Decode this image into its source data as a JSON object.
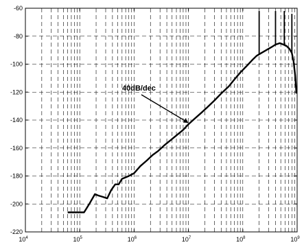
{
  "chart_data": {
    "type": "line",
    "title": "",
    "xlabel": "",
    "ylabel": "",
    "x_scale": "log",
    "xlim": [
      10000,
      1000000000
    ],
    "ylim": [
      -220,
      -60
    ],
    "grid": true,
    "x_tick_labels": [
      {
        "base": "10",
        "exp": "4",
        "value": 10000
      },
      {
        "base": "10",
        "exp": "5",
        "value": 100000
      },
      {
        "base": "10",
        "exp": "6",
        "value": 1000000
      },
      {
        "base": "10",
        "exp": "7",
        "value": 10000000
      },
      {
        "base": "10",
        "exp": "8",
        "value": 100000000
      },
      {
        "base": "10",
        "exp": "9",
        "value": 1000000000
      }
    ],
    "y_ticks": [
      -60,
      -80,
      -100,
      -120,
      -140,
      -160,
      -180,
      -200,
      -220
    ],
    "series": [
      {
        "name": "",
        "color": "#000000",
        "x": [
          60000,
          120000,
          150000,
          190000,
          220000,
          270000,
          320000,
          380000,
          450000,
          520000,
          600000,
          700000,
          800000,
          1000000,
          1300000,
          1700000,
          2200000,
          2800000,
          3600000,
          4500000,
          6000000,
          8000000,
          10000000,
          13000000,
          17000000,
          22000000,
          30000000,
          40000000,
          55000000,
          70000000,
          90000000,
          120000000,
          150000000,
          180000000,
          220000000,
          270000000,
          330000000,
          400000000,
          480000000,
          560000000,
          640000000,
          720000000,
          800000000,
          860000000,
          920000000,
          970000000
        ],
        "y": [
          -206,
          -206,
          -200,
          -193,
          -194,
          -195,
          -196,
          -190,
          -186,
          -186,
          -182,
          -181,
          -180,
          -178,
          -173,
          -169,
          -165,
          -162,
          -158,
          -155,
          -151,
          -147,
          -143,
          -139,
          -135,
          -131,
          -126,
          -121,
          -116,
          -111,
          -106,
          -101,
          -97,
          -94,
          -92,
          -90,
          -88,
          -86,
          -85,
          -86,
          -87,
          -89,
          -92,
          -98,
          -108,
          -121
        ]
      }
    ],
    "spikes": [
      {
        "x": 200000000,
        "y": -62
      },
      {
        "x": 400000000,
        "y": -62
      },
      {
        "x": 580000000,
        "y": -62
      },
      {
        "x": 800000000,
        "y": -64
      }
    ],
    "annotations": [
      {
        "text": "40dB/dec",
        "x": 10000000,
        "y": -142
      }
    ]
  }
}
